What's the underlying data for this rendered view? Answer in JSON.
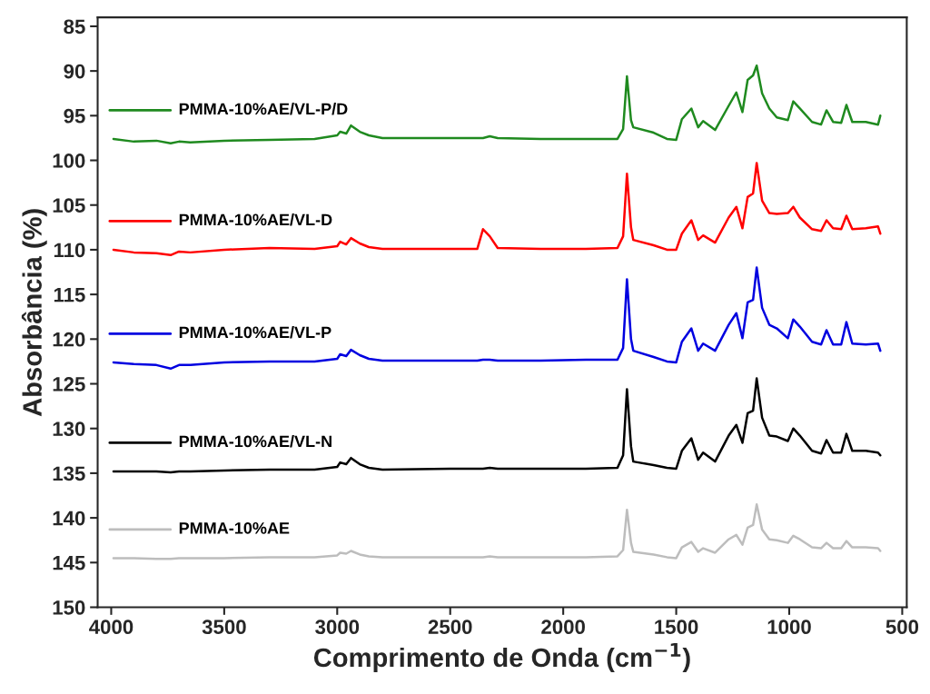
{
  "chart_data": {
    "type": "line",
    "xlabel": "Comprimento de Onda (cm$^{−1}$)",
    "ylabel": "Absorbância (%)",
    "x": [
      3990,
      3900,
      3800,
      3737,
      3700,
      3650,
      3500,
      3300,
      3100,
      3000,
      2987,
      2960,
      2939,
      2900,
      2860,
      2800,
      2500,
      2380,
      2355,
      2325,
      2290,
      2100,
      1900,
      1760,
      1735,
      1718,
      1700,
      1690,
      1600,
      1541,
      1500,
      1475,
      1433,
      1403,
      1381,
      1328,
      1268,
      1234,
      1207,
      1184,
      1160,
      1144,
      1120,
      1088,
      1055,
      1006,
      982,
      953,
      899,
      859,
      835,
      806,
      770,
      747,
      721,
      661,
      607,
      597
    ],
    "series": [
      {
        "name": "PMMA-10%AE/VL-P/D",
        "color": "#1f8a1f",
        "values": [
          97.6,
          97.9,
          97.8,
          98.1,
          97.9,
          98.0,
          97.8,
          97.7,
          97.6,
          97.2,
          96.8,
          97.0,
          96.1,
          96.8,
          97.2,
          97.5,
          97.5,
          97.5,
          97.5,
          97.3,
          97.5,
          97.6,
          97.6,
          97.6,
          96.5,
          90.6,
          95.5,
          96.3,
          96.9,
          97.6,
          97.7,
          95.4,
          94.2,
          96.3,
          95.6,
          96.6,
          93.9,
          92.4,
          94.6,
          91.0,
          90.5,
          89.4,
          92.5,
          94.2,
          95.2,
          95.5,
          93.4,
          94.2,
          95.7,
          96.0,
          94.4,
          95.7,
          95.8,
          93.8,
          95.7,
          95.7,
          96.0,
          95.0
        ]
      },
      {
        "name": "PMMA-10%AE/VL-D",
        "color": "#ff0000",
        "values": [
          110.0,
          110.3,
          110.4,
          110.6,
          110.2,
          110.3,
          110.0,
          109.8,
          109.9,
          109.6,
          109.1,
          109.4,
          108.7,
          109.3,
          109.7,
          109.9,
          109.9,
          109.9,
          107.7,
          108.5,
          109.8,
          109.9,
          109.9,
          109.8,
          108.5,
          101.5,
          107.5,
          108.9,
          109.5,
          110.0,
          110.0,
          108.2,
          106.7,
          108.9,
          108.4,
          109.2,
          106.4,
          105.2,
          107.6,
          104.1,
          103.7,
          100.3,
          104.5,
          105.9,
          106.0,
          105.9,
          105.2,
          106.4,
          107.7,
          107.9,
          106.7,
          107.6,
          107.7,
          106.2,
          107.7,
          107.6,
          107.4,
          108.2
        ]
      },
      {
        "name": "PMMA-10%AE/VL-P",
        "color": "#0000e0",
        "values": [
          122.6,
          122.8,
          122.9,
          123.3,
          122.9,
          122.9,
          122.6,
          122.5,
          122.5,
          122.2,
          121.7,
          121.9,
          121.2,
          121.8,
          122.2,
          122.4,
          122.4,
          122.4,
          122.3,
          122.3,
          122.4,
          122.4,
          122.3,
          122.3,
          121.0,
          113.3,
          120.0,
          121.3,
          122.0,
          122.5,
          122.6,
          120.3,
          118.8,
          121.3,
          120.5,
          121.3,
          118.4,
          117.1,
          119.9,
          115.9,
          115.6,
          112.0,
          116.5,
          118.4,
          118.8,
          119.9,
          117.8,
          118.6,
          120.3,
          120.6,
          119.0,
          120.6,
          120.6,
          118.1,
          120.5,
          120.6,
          120.5,
          121.3
        ]
      },
      {
        "name": "PMMA-10%AE/VL-N",
        "color": "#000000",
        "values": [
          134.8,
          134.8,
          134.8,
          134.9,
          134.8,
          134.8,
          134.7,
          134.6,
          134.6,
          134.3,
          133.8,
          134.0,
          133.3,
          134.0,
          134.4,
          134.6,
          134.5,
          134.5,
          134.5,
          134.4,
          134.5,
          134.5,
          134.5,
          134.4,
          133.0,
          125.6,
          132.0,
          133.7,
          134.1,
          134.4,
          134.5,
          132.5,
          131.1,
          133.5,
          132.7,
          133.7,
          130.8,
          129.6,
          131.6,
          128.3,
          128.0,
          124.4,
          128.8,
          130.8,
          130.9,
          131.4,
          130.0,
          130.8,
          132.5,
          132.8,
          131.3,
          132.7,
          132.7,
          130.6,
          132.5,
          132.5,
          132.7,
          133.0
        ]
      },
      {
        "name": "PMMA-10%AE",
        "color": "#bdbdbd",
        "values": [
          144.5,
          144.5,
          144.6,
          144.6,
          144.5,
          144.5,
          144.5,
          144.4,
          144.4,
          144.2,
          143.9,
          144.0,
          143.7,
          144.1,
          144.3,
          144.4,
          144.4,
          144.4,
          144.4,
          144.3,
          144.4,
          144.4,
          144.4,
          144.3,
          143.6,
          139.1,
          142.8,
          143.8,
          144.1,
          144.4,
          144.5,
          143.3,
          142.7,
          143.8,
          143.4,
          143.9,
          142.4,
          141.9,
          143.0,
          141.1,
          140.8,
          138.5,
          141.3,
          142.4,
          142.5,
          142.8,
          142.0,
          142.4,
          143.3,
          143.4,
          142.8,
          143.4,
          143.4,
          142.6,
          143.3,
          143.3,
          143.4,
          143.7
        ]
      }
    ],
    "xlim": [
      4060,
      480
    ],
    "xticks": [
      4000,
      3500,
      3000,
      2500,
      2000,
      1500,
      1000,
      500
    ],
    "ylim": [
      150,
      84
    ],
    "yticks": [
      85,
      90,
      95,
      100,
      105,
      110,
      115,
      120,
      125,
      130,
      135,
      140,
      145,
      150
    ],
    "grid": false,
    "legend": "left"
  }
}
